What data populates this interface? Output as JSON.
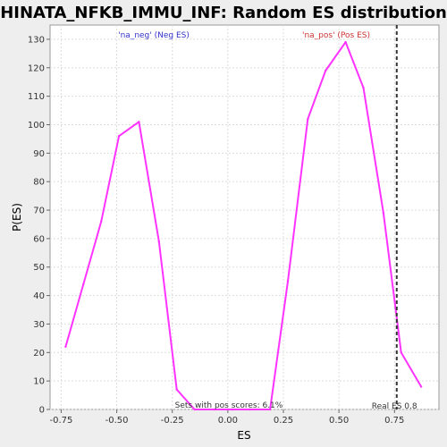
{
  "chart_data": {
    "type": "line",
    "title": "HINATA_NFKB_IMMU_INF: Random ES distribution",
    "xlabel": "ES",
    "ylabel": "P(ES)",
    "xlim": [
      -0.8,
      0.95
    ],
    "ylim": [
      0,
      135
    ],
    "x_ticks": [
      "-0.75",
      "-0.50",
      "-0.25",
      "0.00",
      "0.25",
      "0.50",
      "0.75"
    ],
    "x_tick_values": [
      -0.75,
      -0.5,
      -0.25,
      0.0,
      0.25,
      0.5,
      0.75
    ],
    "y_ticks": [
      "0",
      "10",
      "20",
      "30",
      "40",
      "50",
      "60",
      "70",
      "80",
      "90",
      "100",
      "110",
      "120",
      "130"
    ],
    "y_tick_values": [
      0,
      10,
      20,
      30,
      40,
      50,
      60,
      70,
      80,
      90,
      100,
      110,
      120,
      130
    ],
    "grid": true,
    "series": [
      {
        "color": "#ff33ff",
        "x": [
          -0.73,
          -0.65,
          -0.57,
          -0.49,
          -0.4,
          -0.31,
          -0.23,
          -0.15,
          -0.06,
          0.02,
          0.1,
          0.19,
          0.27,
          0.36,
          0.44,
          0.53,
          0.61,
          0.7,
          0.78,
          0.87
        ],
        "y": [
          22,
          44,
          66,
          96,
          101,
          59,
          7,
          0,
          0,
          0,
          0,
          0,
          45,
          102,
          119,
          129,
          113,
          69,
          20,
          8
        ]
      }
    ],
    "reference_line": {
      "x": 0.76,
      "label": "Real ES 0.8",
      "color": "#333333",
      "style": "dashed"
    },
    "annotations": {
      "neg": "'na_neg' (Neg ES)",
      "pos": "'na_pos' (Pos ES)",
      "pos_score": "Sets with pos scores: 6.1%"
    },
    "colors": {
      "neg": "#3333cc",
      "pos": "#cc3333",
      "plot_bg": "#ffffff",
      "grid": "#dddddd"
    }
  }
}
